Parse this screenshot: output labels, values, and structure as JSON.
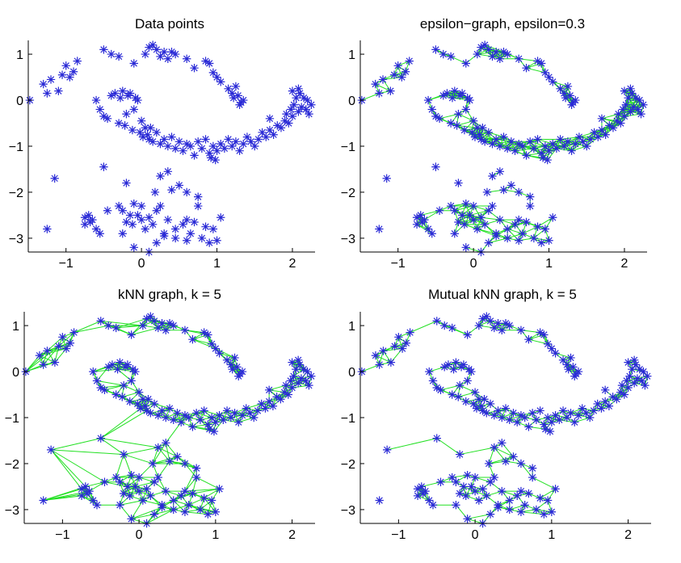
{
  "colors": {
    "marker": "#2a2ad6",
    "edge": "#22e022",
    "axis": "#000000"
  },
  "chart_data": [
    {
      "type": "scatter",
      "title": "Data points",
      "xlim": [
        -1.5,
        2.3
      ],
      "ylim": [
        -3.3,
        1.3
      ],
      "xticks": [
        -1,
        0,
        1,
        2
      ],
      "yticks": [
        -3,
        -2,
        -1,
        0,
        1
      ],
      "xtick_labels": [
        "−1",
        "0",
        "1",
        "2"
      ],
      "ytick_labels": [
        "−3",
        "−2",
        "−1",
        "0",
        "1"
      ],
      "edges": "none",
      "grid": false
    },
    {
      "type": "scatter",
      "title": "epsilon−graph, epsilon=0.3",
      "xlim": [
        -1.5,
        2.3
      ],
      "ylim": [
        -3.3,
        1.3
      ],
      "xticks": [
        -1,
        0,
        1,
        2
      ],
      "yticks": [
        -3,
        -2,
        -1,
        0,
        1
      ],
      "xtick_labels": [
        "−1",
        "0",
        "1",
        "2"
      ],
      "ytick_labels": [
        "−3",
        "−2",
        "−1",
        "0",
        "1"
      ],
      "edges": {
        "method": "epsilon",
        "epsilon": 0.3
      },
      "grid": false
    },
    {
      "type": "scatter",
      "title": "kNN graph, k = 5",
      "xlim": [
        -1.5,
        2.3
      ],
      "ylim": [
        -3.3,
        1.3
      ],
      "xticks": [
        -1,
        0,
        1,
        2
      ],
      "yticks": [
        -3,
        -2,
        -1,
        0,
        1
      ],
      "xtick_labels": [
        "−1",
        "0",
        "1",
        "2"
      ],
      "ytick_labels": [
        "−3",
        "−2",
        "−1",
        "0",
        "1"
      ],
      "edges": {
        "method": "knn",
        "k": 5
      },
      "grid": false
    },
    {
      "type": "scatter",
      "title": "Mutual kNN graph, k = 5",
      "xlim": [
        -1.5,
        2.3
      ],
      "ylim": [
        -3.3,
        1.3
      ],
      "xticks": [
        -1,
        0,
        1,
        2
      ],
      "yticks": [
        -3,
        -2,
        -1,
        0,
        1
      ],
      "xtick_labels": [
        "−1",
        "0",
        "1",
        "2"
      ],
      "ytick_labels": [
        "−3",
        "−2",
        "−1",
        "0",
        "1"
      ],
      "edges": {
        "method": "mutual_knn",
        "k": 5
      },
      "grid": false
    }
  ],
  "points": [
    [
      -1.48,
      0.0
    ],
    [
      -1.3,
      0.35
    ],
    [
      -1.25,
      0.15
    ],
    [
      -1.2,
      0.45
    ],
    [
      -1.1,
      0.2
    ],
    [
      -1.05,
      0.55
    ],
    [
      -1.0,
      0.75
    ],
    [
      -0.95,
      0.5
    ],
    [
      -0.9,
      0.62
    ],
    [
      -0.85,
      0.85
    ],
    [
      -0.5,
      1.1
    ],
    [
      -0.4,
      1.0
    ],
    [
      -0.3,
      0.95
    ],
    [
      -0.1,
      0.8
    ],
    [
      0.05,
      1.0
    ],
    [
      0.1,
      1.15
    ],
    [
      0.15,
      1.2
    ],
    [
      0.2,
      1.1
    ],
    [
      0.25,
      0.95
    ],
    [
      0.3,
      1.05
    ],
    [
      0.35,
      0.9
    ],
    [
      0.4,
      1.05
    ],
    [
      0.45,
      1.0
    ],
    [
      0.6,
      0.9
    ],
    [
      0.7,
      0.7
    ],
    [
      0.85,
      0.85
    ],
    [
      0.9,
      0.8
    ],
    [
      0.95,
      0.6
    ],
    [
      1.0,
      0.5
    ],
    [
      1.05,
      0.4
    ],
    [
      1.15,
      0.25
    ],
    [
      1.2,
      0.15
    ],
    [
      1.22,
      0.05
    ],
    [
      1.25,
      0.3
    ],
    [
      1.28,
      0.1
    ],
    [
      1.3,
      -0.1
    ],
    [
      1.32,
      -0.05
    ],
    [
      1.35,
      0.0
    ],
    [
      -0.6,
      0.0
    ],
    [
      -0.55,
      -0.2
    ],
    [
      -0.5,
      -0.35
    ],
    [
      -0.45,
      -0.4
    ],
    [
      -0.4,
      0.1
    ],
    [
      -0.35,
      0.15
    ],
    [
      -0.3,
      -0.5
    ],
    [
      -0.28,
      0.05
    ],
    [
      -0.25,
      0.2
    ],
    [
      -0.22,
      -0.55
    ],
    [
      -0.2,
      -0.3
    ],
    [
      -0.18,
      0.1
    ],
    [
      -0.15,
      0.15
    ],
    [
      -0.12,
      -0.65
    ],
    [
      -0.1,
      -0.2
    ],
    [
      -0.08,
      0.05
    ],
    [
      -0.05,
      0.0
    ],
    [
      -0.02,
      -0.7
    ],
    [
      0.0,
      -0.45
    ],
    [
      0.02,
      -0.8
    ],
    [
      0.05,
      -0.6
    ],
    [
      0.08,
      -0.75
    ],
    [
      0.1,
      -0.85
    ],
    [
      0.12,
      -0.6
    ],
    [
      0.15,
      -0.9
    ],
    [
      0.2,
      -0.7
    ],
    [
      0.25,
      -0.95
    ],
    [
      0.3,
      -0.85
    ],
    [
      0.35,
      -1.0
    ],
    [
      0.4,
      -0.8
    ],
    [
      0.45,
      -1.05
    ],
    [
      0.5,
      -0.9
    ],
    [
      0.55,
      -1.1
    ],
    [
      0.6,
      -0.95
    ],
    [
      0.65,
      -1.0
    ],
    [
      0.7,
      -1.2
    ],
    [
      0.75,
      -0.9
    ],
    [
      0.8,
      -1.05
    ],
    [
      0.85,
      -0.85
    ],
    [
      0.9,
      -1.15
    ],
    [
      0.92,
      -1.25
    ],
    [
      0.95,
      -1.0
    ],
    [
      0.98,
      -1.3
    ],
    [
      1.0,
      -1.1
    ],
    [
      1.05,
      -0.95
    ],
    [
      1.1,
      -1.05
    ],
    [
      1.15,
      -0.85
    ],
    [
      1.2,
      -1.0
    ],
    [
      1.25,
      -0.9
    ],
    [
      1.3,
      -1.1
    ],
    [
      1.35,
      -0.95
    ],
    [
      1.4,
      -0.8
    ],
    [
      1.45,
      -0.9
    ],
    [
      1.5,
      -1.0
    ],
    [
      1.55,
      -0.85
    ],
    [
      1.6,
      -0.7
    ],
    [
      1.65,
      -0.8
    ],
    [
      1.7,
      -0.65
    ],
    [
      1.75,
      -0.75
    ],
    [
      1.8,
      -0.55
    ],
    [
      1.85,
      -0.6
    ],
    [
      1.9,
      -0.45
    ],
    [
      1.92,
      -0.3
    ],
    [
      1.95,
      -0.5
    ],
    [
      1.98,
      -0.2
    ],
    [
      2.0,
      -0.35
    ],
    [
      2.02,
      -0.1
    ],
    [
      2.05,
      0.05
    ],
    [
      2.08,
      -0.25
    ],
    [
      2.1,
      0.15
    ],
    [
      2.12,
      -0.15
    ],
    [
      2.15,
      0.05
    ],
    [
      2.18,
      -0.2
    ],
    [
      2.2,
      0.0
    ],
    [
      2.22,
      -0.3
    ],
    [
      2.25,
      -0.1
    ],
    [
      2.0,
      0.2
    ],
    [
      2.08,
      0.25
    ],
    [
      1.7,
      -0.4
    ],
    [
      -1.15,
      -1.7
    ],
    [
      -1.25,
      -2.8
    ],
    [
      -0.5,
      -1.45
    ],
    [
      -0.2,
      -1.8
    ],
    [
      -0.75,
      -2.7
    ],
    [
      -0.7,
      -2.5
    ],
    [
      -0.68,
      -2.65
    ],
    [
      -0.65,
      -2.6
    ],
    [
      -0.6,
      -2.8
    ],
    [
      -0.55,
      -2.9
    ],
    [
      -0.45,
      -2.4
    ],
    [
      -0.75,
      -2.55
    ],
    [
      -0.3,
      -2.3
    ],
    [
      -0.25,
      -2.4
    ],
    [
      -0.2,
      -2.65
    ],
    [
      -0.15,
      -2.5
    ],
    [
      -0.12,
      -2.7
    ],
    [
      -0.1,
      -2.25
    ],
    [
      -0.05,
      -2.5
    ],
    [
      0.0,
      -2.6
    ],
    [
      0.0,
      -2.3
    ],
    [
      0.05,
      -2.8
    ],
    [
      0.1,
      -2.55
    ],
    [
      0.15,
      -2.7
    ],
    [
      0.18,
      -2.0
    ],
    [
      0.2,
      -2.4
    ],
    [
      0.25,
      -2.3
    ],
    [
      0.3,
      -2.9
    ],
    [
      0.35,
      -2.6
    ],
    [
      0.4,
      -1.95
    ],
    [
      0.45,
      -2.8
    ],
    [
      0.5,
      -1.85
    ],
    [
      0.55,
      -2.7
    ],
    [
      0.6,
      -2.6
    ],
    [
      0.65,
      -2.9
    ],
    [
      0.7,
      -2.65
    ],
    [
      0.75,
      -2.3
    ],
    [
      0.8,
      -3.0
    ],
    [
      0.85,
      -2.75
    ],
    [
      0.9,
      -3.1
    ],
    [
      0.95,
      -2.8
    ],
    [
      1.0,
      -3.05
    ],
    [
      0.25,
      -1.65
    ],
    [
      0.35,
      -1.55
    ],
    [
      0.6,
      -2.0
    ],
    [
      0.75,
      -2.1
    ],
    [
      1.05,
      -2.55
    ],
    [
      -0.1,
      -3.2
    ],
    [
      0.1,
      -3.3
    ],
    [
      0.2,
      -3.1
    ],
    [
      0.45,
      -3.0
    ],
    [
      -0.25,
      -2.9
    ],
    [
      0.6,
      -3.05
    ],
    [
      0.3,
      -2.95
    ]
  ]
}
